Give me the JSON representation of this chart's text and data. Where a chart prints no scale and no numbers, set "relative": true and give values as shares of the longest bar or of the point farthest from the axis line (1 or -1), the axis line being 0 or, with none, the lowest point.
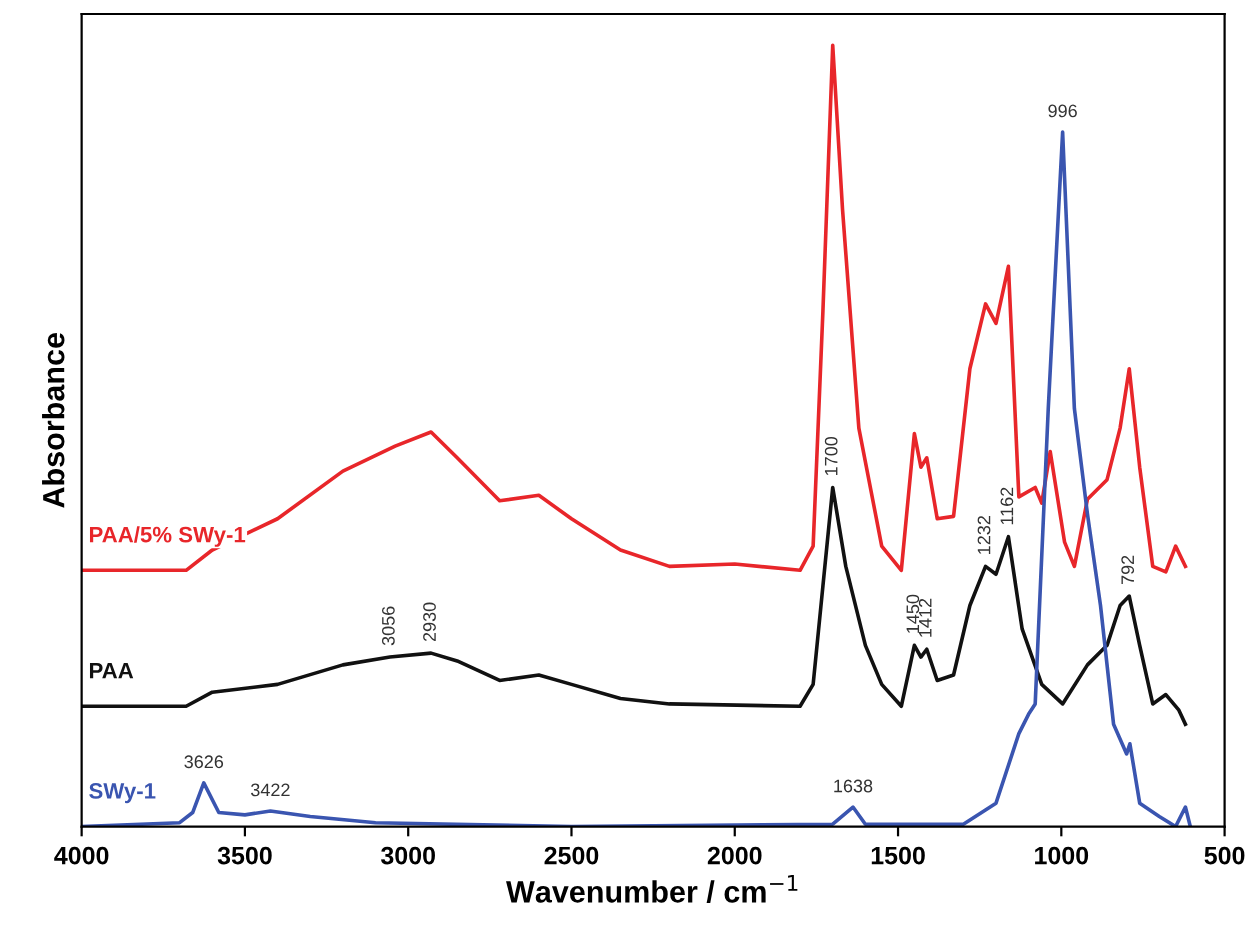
{
  "chart_data": {
    "type": "line",
    "relative": true,
    "xlabel": "Wavenumber / cm$^{−1}$",
    "ylabel": "Absorbance",
    "xlim": [
      4000,
      500
    ],
    "xticks": [
      4000,
      3500,
      3000,
      2500,
      2000,
      1500,
      1000,
      500
    ],
    "tick_labels": "x",
    "grid": false,
    "legend": false,
    "marker": "none",
    "line_style": "solid",
    "series": [
      {
        "name": "PAA/5% SWy-1",
        "color": "#e8262a",
        "x": [
          4000,
          3680,
          3600,
          3400,
          3200,
          3040,
          2930,
          2850,
          2720,
          2600,
          2500,
          2350,
          2200,
          2000,
          1800,
          1760,
          1730,
          1700,
          1670,
          1620,
          1550,
          1490,
          1450,
          1430,
          1412,
          1380,
          1330,
          1280,
          1232,
          1200,
          1162,
          1130,
          1080,
          1060,
          1034,
          990,
          960,
          920,
          860,
          820,
          792,
          760,
          720,
          680,
          650,
          620
        ],
        "values": [
          0.328,
          0.328,
          0.354,
          0.394,
          0.455,
          0.487,
          0.505,
          0.472,
          0.417,
          0.424,
          0.394,
          0.354,
          0.333,
          0.336,
          0.328,
          0.359,
          0.66,
          1.0,
          0.79,
          0.51,
          0.359,
          0.328,
          0.503,
          0.46,
          0.472,
          0.394,
          0.397,
          0.586,
          0.669,
          0.644,
          0.717,
          0.422,
          0.434,
          0.414,
          0.48,
          0.364,
          0.333,
          0.419,
          0.444,
          0.51,
          0.586,
          0.46,
          0.333,
          0.326,
          0.359,
          0.333
        ]
      },
      {
        "name": "PAA",
        "color": "#111111",
        "x": [
          4000,
          3680,
          3600,
          3400,
          3200,
          3056,
          2930,
          2850,
          2720,
          2600,
          2500,
          2350,
          2200,
          1800,
          1760,
          1730,
          1700,
          1660,
          1600,
          1550,
          1490,
          1450,
          1430,
          1412,
          1380,
          1330,
          1280,
          1232,
          1200,
          1162,
          1120,
          1060,
          996,
          920,
          860,
          820,
          792,
          760,
          720,
          680,
          640,
          620
        ],
        "values": [
          0.154,
          0.154,
          0.172,
          0.182,
          0.207,
          0.217,
          0.222,
          0.212,
          0.187,
          0.194,
          0.182,
          0.164,
          0.157,
          0.154,
          0.182,
          0.308,
          0.434,
          0.333,
          0.232,
          0.182,
          0.154,
          0.232,
          0.217,
          0.227,
          0.187,
          0.194,
          0.283,
          0.333,
          0.323,
          0.371,
          0.253,
          0.182,
          0.157,
          0.207,
          0.232,
          0.283,
          0.295,
          0.232,
          0.157,
          0.169,
          0.149,
          0.131
        ]
      },
      {
        "name": "SWy-1",
        "color": "#3a55b0",
        "x": [
          4000,
          3700,
          3660,
          3626,
          3580,
          3500,
          3422,
          3300,
          3100,
          2500,
          1700,
          1638,
          1600,
          1300,
          1200,
          1130,
          1100,
          1080,
          1040,
          996,
          960,
          920,
          880,
          840,
          800,
          790,
          760,
          700,
          650,
          620,
          605
        ],
        "values": [
          0,
          0.005,
          0.018,
          0.056,
          0.018,
          0.015,
          0.02,
          0.013,
          0.005,
          0,
          0.003,
          0.025,
          0.003,
          0.003,
          0.03,
          0.119,
          0.144,
          0.157,
          0.535,
          0.889,
          0.535,
          0.4,
          0.283,
          0.131,
          0.093,
          0.106,
          0.03,
          0.013,
          0,
          0.025,
          0
        ]
      }
    ],
    "annotations": [
      {
        "text": "996",
        "x": 996,
        "y": 0.889
      },
      {
        "text": "3626",
        "x": 3626,
        "y": 0.056
      },
      {
        "text": "3422",
        "x": 3422,
        "y": 0.02
      },
      {
        "text": "1638",
        "x": 1638,
        "y": 0.025
      },
      {
        "text": "3056",
        "x": 3056,
        "y": 0.217
      },
      {
        "text": "2930",
        "x": 2930,
        "y": 0.222
      },
      {
        "text": "1700",
        "x": 1700,
        "y": 0.434
      },
      {
        "text": "1450",
        "x": 1450,
        "y": 0.232
      },
      {
        "text": "1412",
        "x": 1412,
        "y": 0.227
      },
      {
        "text": "1232",
        "x": 1232,
        "y": 0.333
      },
      {
        "text": "1162",
        "x": 1162,
        "y": 0.371
      },
      {
        "text": "792",
        "x": 792,
        "y": 0.295
      }
    ]
  }
}
